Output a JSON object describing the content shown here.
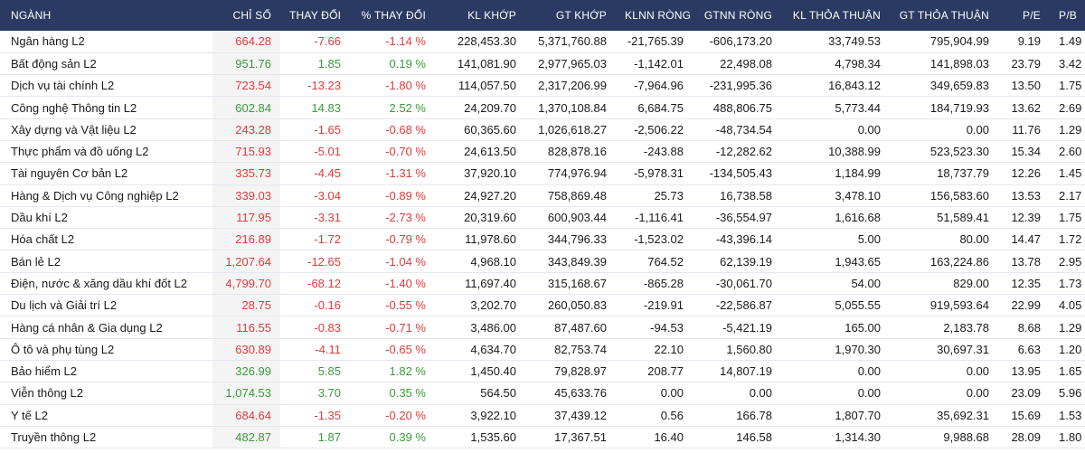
{
  "colors": {
    "header_bg": "#2b3a63",
    "up": "#3a9a3a",
    "down": "#e03a3a"
  },
  "columns": [
    "NGÀNH",
    "CHỈ SỐ",
    "THAY ĐỔI",
    "% THAY ĐỔI",
    "KL KHỚP",
    "GT KHỚP",
    "KLNN RÒNG",
    "GTNN RÒNG",
    "KL THỎA THUẬN",
    "GT THỎA THUẬN",
    "P/E",
    "P/B"
  ],
  "rows": [
    {
      "name": "Ngân hàng L2",
      "index": "664.28",
      "change": "-7.66",
      "pct": "-1.14 %",
      "dir": "down",
      "kl_khop": "228,453.30",
      "gt_khop": "5,371,760.88",
      "klnn": "-21,765.39",
      "gtnn": "-606,173.20",
      "kl_tt": "33,749.53",
      "gt_tt": "795,904.99",
      "pe": "9.19",
      "pb": "1.49"
    },
    {
      "name": "Bất động sản L2",
      "index": "951.76",
      "change": "1.85",
      "pct": "0.19 %",
      "dir": "up",
      "kl_khop": "141,081.90",
      "gt_khop": "2,977,965.03",
      "klnn": "-1,142.01",
      "gtnn": "22,498.08",
      "kl_tt": "4,798.34",
      "gt_tt": "141,898.03",
      "pe": "23.79",
      "pb": "3.42"
    },
    {
      "name": "Dịch vụ tài chính L2",
      "index": "723.54",
      "change": "-13.23",
      "pct": "-1.80 %",
      "dir": "down",
      "kl_khop": "114,057.50",
      "gt_khop": "2,317,206.99",
      "klnn": "-7,964.96",
      "gtnn": "-231,995.36",
      "kl_tt": "16,843.12",
      "gt_tt": "349,659.83",
      "pe": "13.50",
      "pb": "1.75"
    },
    {
      "name": "Công nghệ Thông tin L2",
      "index": "602.84",
      "change": "14.83",
      "pct": "2.52 %",
      "dir": "up",
      "kl_khop": "24,209.70",
      "gt_khop": "1,370,108.84",
      "klnn": "6,684.75",
      "gtnn": "488,806.75",
      "kl_tt": "5,773.44",
      "gt_tt": "184,719.93",
      "pe": "13.62",
      "pb": "2.69"
    },
    {
      "name": "Xây dựng và Vật liệu L2",
      "index": "243.28",
      "change": "-1.65",
      "pct": "-0.68 %",
      "dir": "down",
      "kl_khop": "60,365.60",
      "gt_khop": "1,026,618.27",
      "klnn": "-2,506.22",
      "gtnn": "-48,734.54",
      "kl_tt": "0.00",
      "gt_tt": "0.00",
      "pe": "11.76",
      "pb": "1.29"
    },
    {
      "name": "Thực phẩm và đồ uống L2",
      "index": "715.93",
      "change": "-5.01",
      "pct": "-0.70 %",
      "dir": "down",
      "kl_khop": "24,613.50",
      "gt_khop": "828,878.16",
      "klnn": "-243.88",
      "gtnn": "-12,282.62",
      "kl_tt": "10,388.99",
      "gt_tt": "523,523.30",
      "pe": "15.34",
      "pb": "2.60"
    },
    {
      "name": "Tài nguyên Cơ bản L2",
      "index": "335.73",
      "change": "-4.45",
      "pct": "-1.31 %",
      "dir": "down",
      "kl_khop": "37,920.10",
      "gt_khop": "774,976.94",
      "klnn": "-5,978.31",
      "gtnn": "-134,505.43",
      "kl_tt": "1,184.99",
      "gt_tt": "18,737.79",
      "pe": "12.26",
      "pb": "1.45"
    },
    {
      "name": "Hàng & Dịch vụ Công nghiệp L2",
      "index": "339.03",
      "change": "-3.04",
      "pct": "-0.89 %",
      "dir": "down",
      "kl_khop": "24,927.20",
      "gt_khop": "758,869.48",
      "klnn": "25.73",
      "gtnn": "16,738.58",
      "kl_tt": "3,478.10",
      "gt_tt": "156,583.60",
      "pe": "13.53",
      "pb": "2.17"
    },
    {
      "name": "Dầu khí L2",
      "index": "117.95",
      "change": "-3.31",
      "pct": "-2.73 %",
      "dir": "down",
      "kl_khop": "20,319.60",
      "gt_khop": "600,903.44",
      "klnn": "-1,116.41",
      "gtnn": "-36,554.97",
      "kl_tt": "1,616.68",
      "gt_tt": "51,589.41",
      "pe": "12.39",
      "pb": "1.75"
    },
    {
      "name": "Hóa chất L2",
      "index": "216.89",
      "change": "-1.72",
      "pct": "-0.79 %",
      "dir": "down",
      "kl_khop": "11,978.60",
      "gt_khop": "344,796.33",
      "klnn": "-1,523.02",
      "gtnn": "-43,396.14",
      "kl_tt": "5.00",
      "gt_tt": "80.00",
      "pe": "14.47",
      "pb": "1.72"
    },
    {
      "name": "Bán lẻ L2",
      "index": "1,207.64",
      "change": "-12.65",
      "pct": "-1.04 %",
      "dir": "down",
      "kl_khop": "4,968.10",
      "gt_khop": "343,849.39",
      "klnn": "764.52",
      "gtnn": "62,139.19",
      "kl_tt": "1,943.65",
      "gt_tt": "163,224.86",
      "pe": "13.78",
      "pb": "2.95"
    },
    {
      "name": "Điện, nước & xăng dầu khí đốt L2",
      "index": "4,799.70",
      "change": "-68.12",
      "pct": "-1.40 %",
      "dir": "down",
      "kl_khop": "11,697.40",
      "gt_khop": "315,168.67",
      "klnn": "-865.28",
      "gtnn": "-30,061.70",
      "kl_tt": "54.00",
      "gt_tt": "829.00",
      "pe": "12.35",
      "pb": "1.73"
    },
    {
      "name": "Du lịch và Giải trí L2",
      "index": "28.75",
      "change": "-0.16",
      "pct": "-0.55 %",
      "dir": "down",
      "kl_khop": "3,202.70",
      "gt_khop": "260,050.83",
      "klnn": "-219.91",
      "gtnn": "-22,586.87",
      "kl_tt": "5,055.55",
      "gt_tt": "919,593.64",
      "pe": "22.99",
      "pb": "4.05"
    },
    {
      "name": "Hàng cá nhân & Gia dụng L2",
      "index": "116.55",
      "change": "-0.83",
      "pct": "-0.71 %",
      "dir": "down",
      "kl_khop": "3,486.00",
      "gt_khop": "87,487.60",
      "klnn": "-94.53",
      "gtnn": "-5,421.19",
      "kl_tt": "165.00",
      "gt_tt": "2,183.78",
      "pe": "8.68",
      "pb": "1.29"
    },
    {
      "name": "Ô tô và phụ tùng L2",
      "index": "630.89",
      "change": "-4.11",
      "pct": "-0.65 %",
      "dir": "down",
      "kl_khop": "4,634.70",
      "gt_khop": "82,753.74",
      "klnn": "22.10",
      "gtnn": "1,560.80",
      "kl_tt": "1,970.30",
      "gt_tt": "30,697.31",
      "pe": "6.63",
      "pb": "1.20"
    },
    {
      "name": "Bảo hiểm L2",
      "index": "326.99",
      "change": "5.85",
      "pct": "1.82 %",
      "dir": "up",
      "kl_khop": "1,450.40",
      "gt_khop": "79,828.97",
      "klnn": "208.77",
      "gtnn": "14,807.19",
      "kl_tt": "0.00",
      "gt_tt": "0.00",
      "pe": "13.95",
      "pb": "1.65"
    },
    {
      "name": "Viễn thông L2",
      "index": "1,074.53",
      "change": "3.70",
      "pct": "0.35 %",
      "dir": "up",
      "kl_khop": "564.50",
      "gt_khop": "45,633.76",
      "klnn": "0.00",
      "gtnn": "0.00",
      "kl_tt": "0.00",
      "gt_tt": "0.00",
      "pe": "23.09",
      "pb": "5.96"
    },
    {
      "name": "Y tế L2",
      "index": "684.64",
      "change": "-1.35",
      "pct": "-0.20 %",
      "dir": "down",
      "kl_khop": "3,922.10",
      "gt_khop": "37,439.12",
      "klnn": "0.56",
      "gtnn": "166.78",
      "kl_tt": "1,807.70",
      "gt_tt": "35,692.31",
      "pe": "15.69",
      "pb": "1.53"
    },
    {
      "name": "Truyền thông L2",
      "index": "482.87",
      "change": "1.87",
      "pct": "0.39 %",
      "dir": "up",
      "kl_khop": "1,535.60",
      "gt_khop": "17,367.51",
      "klnn": "16.40",
      "gtnn": "146.58",
      "kl_tt": "1,314.30",
      "gt_tt": "9,988.68",
      "pe": "28.09",
      "pb": "1.80"
    }
  ]
}
